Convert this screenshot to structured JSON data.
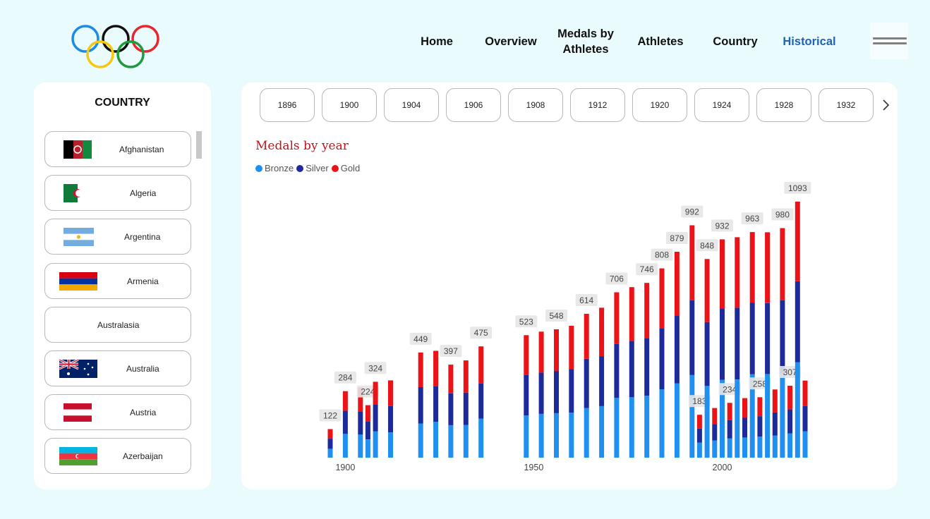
{
  "nav": {
    "items": [
      {
        "label": "Home",
        "name": "nav-home",
        "active": false
      },
      {
        "label": "Overview",
        "name": "nav-overview",
        "active": false
      },
      {
        "label": "Medals by Athletes",
        "name": "nav-medals-by-athletes",
        "active": false
      },
      {
        "label": "Athletes",
        "name": "nav-athletes",
        "active": false
      },
      {
        "label": "Country",
        "name": "nav-country",
        "active": false
      },
      {
        "label": "Historical",
        "name": "nav-historical",
        "active": true
      }
    ],
    "active_color": "#1f62b7"
  },
  "sidebar": {
    "title": "COUNTRY",
    "countries": [
      {
        "name": "Afghanistan",
        "flag": "afghanistan"
      },
      {
        "name": "Algeria",
        "flag": "algeria"
      },
      {
        "name": "Argentina",
        "flag": "argentina"
      },
      {
        "name": "Armenia",
        "flag": "armenia"
      },
      {
        "name": "Australasia",
        "flag": ""
      },
      {
        "name": "Australia",
        "flag": "australia"
      },
      {
        "name": "Austria",
        "flag": "austria"
      },
      {
        "name": "Azerbaijan",
        "flag": "azerbaijan"
      }
    ]
  },
  "year_slicer": {
    "years": [
      "1896",
      "1900",
      "1904",
      "1906",
      "1908",
      "1912",
      "1920",
      "1924",
      "1928",
      "1932"
    ],
    "next_icon": "chevron-right-icon"
  },
  "chart_data": {
    "type": "bar",
    "stacked": true,
    "title": "Medals by year",
    "xlabel": "",
    "ylabel": "",
    "x_ticks": [
      1900,
      1950,
      2000
    ],
    "xlim": [
      1893,
      2025
    ],
    "ylim": [
      0,
      1150
    ],
    "legend_position": "top-left",
    "grid": false,
    "series": [
      {
        "name": "Bronze",
        "color": "#1f8ff0"
      },
      {
        "name": "Silver",
        "color": "#1d2a9a"
      },
      {
        "name": "Gold",
        "color": "#eb1318"
      }
    ],
    "points": [
      {
        "x": 1896,
        "bronze": 38,
        "silver": 43,
        "gold": 41,
        "label": "122"
      },
      {
        "x": 1900,
        "bronze": 102,
        "silver": 98,
        "gold": 84,
        "label": "284"
      },
      {
        "x": 1904,
        "bronze": 99,
        "silver": 98,
        "gold": 103,
        "label": ""
      },
      {
        "x": 1906,
        "bronze": 78,
        "silver": 76,
        "gold": 70,
        "label": "224"
      },
      {
        "x": 1908,
        "bronze": 112,
        "silver": 115,
        "gold": 97,
        "label": "324"
      },
      {
        "x": 1912,
        "bronze": 108,
        "silver": 112,
        "gold": 110,
        "label": ""
      },
      {
        "x": 1920,
        "bronze": 146,
        "silver": 155,
        "gold": 148,
        "label": "449"
      },
      {
        "x": 1924,
        "bronze": 153,
        "silver": 153,
        "gold": 150,
        "label": ""
      },
      {
        "x": 1928,
        "bronze": 139,
        "silver": 136,
        "gold": 122,
        "label": "397"
      },
      {
        "x": 1932,
        "bronze": 140,
        "silver": 138,
        "gold": 137,
        "label": ""
      },
      {
        "x": 1936,
        "bronze": 167,
        "silver": 150,
        "gold": 158,
        "label": "475"
      },
      {
        "x": 1948,
        "bronze": 180,
        "silver": 173,
        "gold": 170,
        "label": "523"
      },
      {
        "x": 1952,
        "bronze": 187,
        "silver": 176,
        "gold": 175,
        "label": ""
      },
      {
        "x": 1956,
        "bronze": 190,
        "silver": 179,
        "gold": 179,
        "label": "548"
      },
      {
        "x": 1960,
        "bronze": 192,
        "silver": 187,
        "gold": 184,
        "label": ""
      },
      {
        "x": 1964,
        "bronze": 212,
        "silver": 210,
        "gold": 192,
        "label": "614"
      },
      {
        "x": 1968,
        "bronze": 220,
        "silver": 212,
        "gold": 208,
        "label": ""
      },
      {
        "x": 1972,
        "bronze": 255,
        "silver": 230,
        "gold": 221,
        "label": "706"
      },
      {
        "x": 1976,
        "bronze": 258,
        "silver": 240,
        "gold": 230,
        "label": ""
      },
      {
        "x": 1980,
        "bronze": 265,
        "silver": 245,
        "gold": 236,
        "label": "746"
      },
      {
        "x": 1984,
        "bronze": 292,
        "silver": 261,
        "gold": 255,
        "label": "808"
      },
      {
        "x": 1988,
        "bronze": 317,
        "silver": 288,
        "gold": 274,
        "label": "879"
      },
      {
        "x": 1992,
        "bronze": 353,
        "silver": 319,
        "gold": 320,
        "label": "992"
      },
      {
        "x": 1994,
        "bronze": 64,
        "silver": 60,
        "gold": 59,
        "label": "183"
      },
      {
        "x": 1996,
        "bronze": 307,
        "silver": 272,
        "gold": 269,
        "label": "848"
      },
      {
        "x": 1998,
        "bronze": 74,
        "silver": 70,
        "gold": 68,
        "label": ""
      },
      {
        "x": 2000,
        "bronze": 332,
        "silver": 305,
        "gold": 295,
        "label": "932"
      },
      {
        "x": 2002,
        "bronze": 82,
        "silver": 78,
        "gold": 74,
        "label": "234"
      },
      {
        "x": 2004,
        "bronze": 334,
        "silver": 306,
        "gold": 301,
        "label": ""
      },
      {
        "x": 2006,
        "bronze": 86,
        "silver": 84,
        "gold": 84,
        "label": ""
      },
      {
        "x": 2008,
        "bronze": 356,
        "silver": 306,
        "gold": 301,
        "label": "963"
      },
      {
        "x": 2010,
        "bronze": 90,
        "silver": 87,
        "gold": 81,
        "label": "258"
      },
      {
        "x": 2012,
        "bronze": 357,
        "silver": 303,
        "gold": 302,
        "label": ""
      },
      {
        "x": 2014,
        "bronze": 95,
        "silver": 98,
        "gold": 98,
        "label": ""
      },
      {
        "x": 2016,
        "bronze": 360,
        "silver": 312,
        "gold": 308,
        "label": "980"
      },
      {
        "x": 2018,
        "bronze": 104,
        "silver": 102,
        "gold": 101,
        "label": "307"
      },
      {
        "x": 2020,
        "bronze": 407,
        "silver": 346,
        "gold": 340,
        "label": "1093"
      },
      {
        "x": 2022,
        "bronze": 113,
        "silver": 109,
        "gold": 107,
        "label": ""
      }
    ]
  }
}
